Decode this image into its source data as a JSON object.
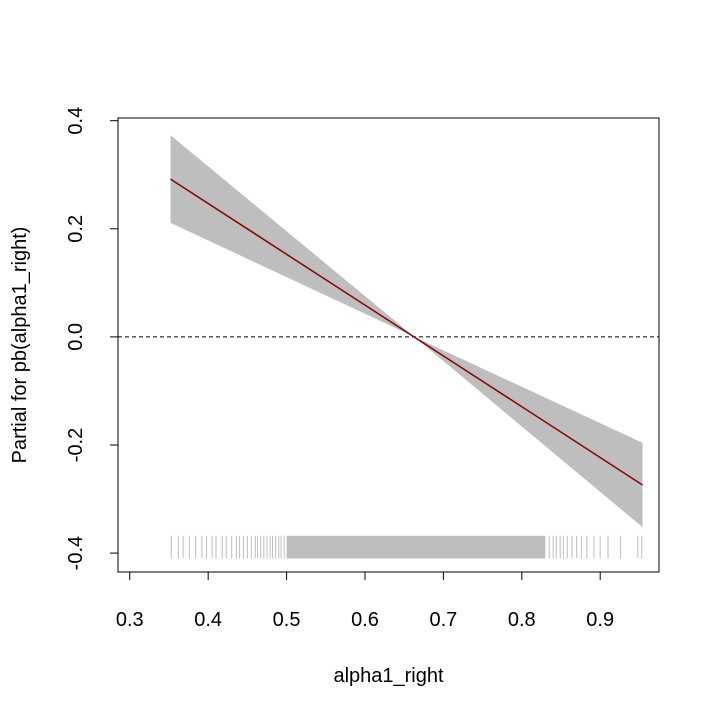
{
  "chart_data": {
    "type": "line",
    "title": "",
    "xlabel": "alpha1_right",
    "ylabel": "Partial for pb(alpha1_right)",
    "xlim": [
      0.285,
      0.975
    ],
    "ylim": [
      -0.435,
      0.405
    ],
    "x_ticks": [
      {
        "value": 0.3,
        "label": "0.3"
      },
      {
        "value": 0.4,
        "label": "0.4"
      },
      {
        "value": 0.5,
        "label": "0.5"
      },
      {
        "value": 0.6,
        "label": "0.6"
      },
      {
        "value": 0.7,
        "label": "0.7"
      },
      {
        "value": 0.8,
        "label": "0.8"
      },
      {
        "value": 0.9,
        "label": "0.9"
      }
    ],
    "y_ticks": [
      {
        "value": -0.4,
        "label": "-0.4"
      },
      {
        "value": -0.2,
        "label": "-0.2"
      },
      {
        "value": 0.0,
        "label": "0.0"
      },
      {
        "value": 0.2,
        "label": "0.2"
      },
      {
        "value": 0.4,
        "label": "0.4"
      }
    ],
    "fit": {
      "x": [
        0.352,
        0.954
      ],
      "y": [
        0.292,
        -0.274
      ],
      "color": "#8b0000"
    },
    "confidence_band": {
      "x": [
        0.352,
        0.663,
        0.954
      ],
      "upper": [
        0.373,
        0.0,
        -0.196
      ],
      "lower": [
        0.211,
        0.0,
        -0.352
      ],
      "color": "#bebebe"
    },
    "reference_line": {
      "y": 0.0,
      "style": "dashed"
    },
    "rug": {
      "y_range": [
        -0.41,
        -0.368
      ],
      "sparse_x": [
        0.353,
        0.362,
        0.368,
        0.376,
        0.384,
        0.392,
        0.398,
        0.405,
        0.41,
        0.418,
        0.423,
        0.43,
        0.436,
        0.44,
        0.445,
        0.45,
        0.455,
        0.46,
        0.463,
        0.467,
        0.471,
        0.475,
        0.479,
        0.482,
        0.486,
        0.49,
        0.493,
        0.497,
        0.835,
        0.84,
        0.844,
        0.849,
        0.853,
        0.858,
        0.864,
        0.87,
        0.876,
        0.883,
        0.892,
        0.9,
        0.91,
        0.926,
        0.948,
        0.953
      ],
      "dense_range": [
        0.5,
        0.83
      ],
      "color": "#bebebe"
    }
  }
}
